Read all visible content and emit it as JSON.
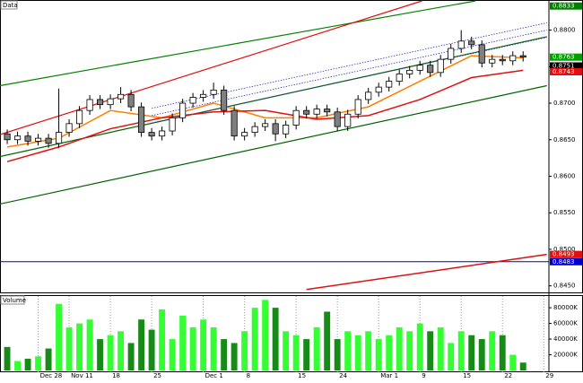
{
  "chart_data": [
    {
      "type": "candlestick",
      "title": "Data",
      "xlim": [
        -0.7,
        52.5
      ],
      "ylim": [
        0.8441,
        0.884
      ],
      "xticks": [
        {
          "value": 3,
          "label": "Dec 28"
        },
        {
          "value": 6,
          "label": "Nov 11"
        },
        {
          "value": 10,
          "label": "18"
        },
        {
          "value": 14,
          "label": "25"
        },
        {
          "value": 19,
          "label": "Dec 1"
        },
        {
          "value": 23,
          "label": "8"
        },
        {
          "value": 28,
          "label": "15"
        },
        {
          "value": 32,
          "label": "24"
        },
        {
          "value": 36,
          "label": "Mar 1"
        },
        {
          "value": 40,
          "label": "9"
        },
        {
          "value": 44,
          "label": "15"
        },
        {
          "value": 48,
          "label": "22"
        },
        {
          "value": 52,
          "label": "29"
        }
      ],
      "yticks": [
        {
          "value": 0.88,
          "label": "0.8800"
        },
        {
          "value": 0.875,
          "label": "0.8750"
        },
        {
          "value": 0.87,
          "label": "0.8700"
        },
        {
          "value": 0.865,
          "label": "0.8650"
        },
        {
          "value": 0.86,
          "label": "0.8600"
        },
        {
          "value": 0.855,
          "label": "0.8550"
        },
        {
          "value": 0.85,
          "label": "0.8500"
        },
        {
          "value": 0.845,
          "label": "0.8450"
        }
      ],
      "up_color": "#ffffff",
      "down_color": "#808080",
      "open": [
        0.8658,
        0.865,
        0.8655,
        0.8648,
        0.8652,
        0.8645,
        0.866,
        0.8672,
        0.869,
        0.8705,
        0.8698,
        0.8706,
        0.8712,
        0.8695,
        0.866,
        0.8655,
        0.8662,
        0.868,
        0.87,
        0.8708,
        0.8712,
        0.8718,
        0.869,
        0.8655,
        0.866,
        0.8668,
        0.8672,
        0.8658,
        0.867,
        0.869,
        0.8685,
        0.8692,
        0.8688,
        0.8668,
        0.8685,
        0.8705,
        0.8715,
        0.8722,
        0.873,
        0.874,
        0.8745,
        0.8752,
        0.8742,
        0.876,
        0.8775,
        0.8785,
        0.878,
        0.8755,
        0.876,
        0.8758,
        0.8765
      ],
      "high": [
        0.8664,
        0.8661,
        0.8661,
        0.8658,
        0.8658,
        0.872,
        0.8678,
        0.8696,
        0.8711,
        0.8711,
        0.8712,
        0.8722,
        0.8718,
        0.8701,
        0.8666,
        0.8668,
        0.8686,
        0.8706,
        0.8714,
        0.8718,
        0.8728,
        0.8724,
        0.8696,
        0.8666,
        0.8674,
        0.8678,
        0.8678,
        0.8676,
        0.8696,
        0.8696,
        0.8698,
        0.8698,
        0.8694,
        0.8691,
        0.8711,
        0.8721,
        0.8728,
        0.8736,
        0.8746,
        0.8751,
        0.8758,
        0.8758,
        0.8766,
        0.8781,
        0.88,
        0.8791,
        0.8786,
        0.8766,
        0.8766,
        0.8771,
        0.8771
      ],
      "low": [
        0.8644,
        0.8644,
        0.8642,
        0.8642,
        0.8639,
        0.8639,
        0.8654,
        0.8666,
        0.8684,
        0.8692,
        0.8692,
        0.87,
        0.8689,
        0.8654,
        0.8649,
        0.8649,
        0.8656,
        0.8674,
        0.8694,
        0.8702,
        0.8706,
        0.8684,
        0.8649,
        0.8649,
        0.8654,
        0.8662,
        0.8648,
        0.8652,
        0.8664,
        0.8679,
        0.8679,
        0.8682,
        0.8662,
        0.8662,
        0.8679,
        0.8699,
        0.8709,
        0.8716,
        0.8724,
        0.8734,
        0.8739,
        0.8736,
        0.8736,
        0.8754,
        0.8769,
        0.8774,
        0.8749,
        0.8749,
        0.8752,
        0.8752,
        0.8757
      ],
      "close": [
        0.865,
        0.8655,
        0.8648,
        0.8652,
        0.8645,
        0.866,
        0.8672,
        0.869,
        0.8705,
        0.8698,
        0.8706,
        0.8712,
        0.8695,
        0.866,
        0.8655,
        0.8662,
        0.868,
        0.87,
        0.8708,
        0.8712,
        0.8718,
        0.869,
        0.8655,
        0.866,
        0.8668,
        0.8672,
        0.8658,
        0.867,
        0.869,
        0.8685,
        0.8692,
        0.8688,
        0.8668,
        0.8685,
        0.8705,
        0.8715,
        0.8722,
        0.873,
        0.874,
        0.8745,
        0.8752,
        0.8742,
        0.876,
        0.8775,
        0.8785,
        0.878,
        0.8755,
        0.876,
        0.8758,
        0.8765,
        0.8763
      ],
      "lines": [
        {
          "color": "#ff8000",
          "x": [
            0,
            5,
            10,
            15,
            20,
            25,
            30,
            35,
            40,
            45,
            50
          ],
          "values": [
            0.864,
            0.8652,
            0.869,
            0.868,
            0.87,
            0.868,
            0.868,
            0.8695,
            0.873,
            0.8765,
            0.8762
          ]
        },
        {
          "color": "#e01010",
          "x": [
            0,
            5,
            10,
            15,
            20,
            25,
            30,
            35,
            40,
            45,
            50
          ],
          "values": [
            0.862,
            0.864,
            0.8665,
            0.868,
            0.8688,
            0.869,
            0.8678,
            0.8683,
            0.8705,
            0.8735,
            0.8745
          ]
        },
        {
          "color": "#e01010",
          "x": [
            29,
            52.3
          ],
          "values": [
            0.8445,
            0.8493
          ]
        }
      ],
      "trendlines": [
        {
          "color": "#008000",
          "style": "solid",
          "x": [
            -0.7,
            45.4
          ],
          "y": [
            0.8724,
            0.884
          ]
        },
        {
          "color": "#e01010",
          "style": "solid",
          "x": [
            -0.7,
            40.2
          ],
          "y": [
            0.8657,
            0.884
          ]
        },
        {
          "color": "#006400",
          "style": "solid",
          "x": [
            -0.7,
            52.3
          ],
          "y": [
            0.8627,
            0.8791
          ]
        },
        {
          "color": "#006400",
          "style": "solid",
          "x": [
            -0.7,
            52.3
          ],
          "y": [
            0.8562,
            0.8724
          ]
        },
        {
          "color": "#3030c0",
          "style": "dotted",
          "x": [
            14,
            52.3
          ],
          "y": [
            0.8693,
            0.881
          ]
        },
        {
          "color": "#3030c0",
          "style": "dotted",
          "x": [
            14,
            52.3
          ],
          "y": [
            0.8683,
            0.88
          ]
        },
        {
          "color": "#3030c0",
          "style": "dotted",
          "x": [
            14,
            52.3
          ],
          "y": [
            0.8673,
            0.879
          ]
        }
      ],
      "markers": [
        {
          "value": 0.8833,
          "color": "#008000",
          "line": false
        },
        {
          "value": 0.8763,
          "color": "#00a000",
          "line": false
        },
        {
          "value": 0.8751,
          "color": "#000000",
          "line": false
        },
        {
          "value": 0.8743,
          "color": "#e01010",
          "line": false
        },
        {
          "value": 0.8493,
          "color": "#e01010",
          "line": false
        },
        {
          "value": 0.8483,
          "color": "#0000cc",
          "line": true
        }
      ]
    },
    {
      "type": "bar",
      "title": "Volume",
      "ylim": [
        0,
        95000
      ],
      "yticks": [
        {
          "value": 80000,
          "label": "80000K"
        },
        {
          "value": 60000,
          "label": "60000K"
        },
        {
          "value": 40000,
          "label": "40000K"
        },
        {
          "value": 20000,
          "label": "20000K"
        }
      ],
      "up_color": "#33ff33",
      "down_color": "#188a18",
      "values": [
        30000,
        12000,
        15000,
        18000,
        28000,
        85000,
        55000,
        60000,
        65000,
        40000,
        45000,
        50000,
        35000,
        65000,
        52000,
        78000,
        40000,
        70000,
        55000,
        65000,
        55000,
        40000,
        35000,
        50000,
        80000,
        90000,
        80000,
        50000,
        45000,
        40000,
        55000,
        75000,
        40000,
        50000,
        45000,
        50000,
        40000,
        45000,
        55000,
        50000,
        60000,
        50000,
        55000,
        35000,
        50000,
        45000,
        40000,
        50000,
        45000,
        20000,
        10000
      ]
    }
  ]
}
